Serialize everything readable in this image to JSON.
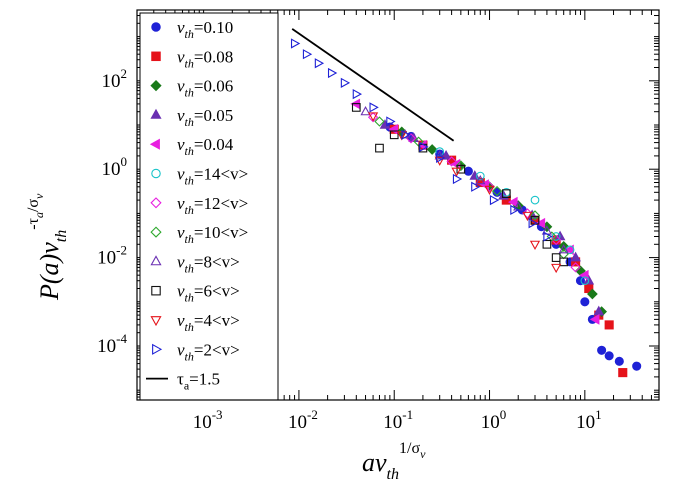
{
  "chart_data": {
    "type": "scatter",
    "title": "",
    "xscale": "log",
    "yscale": "log",
    "xlim": [
      0.0002,
      60
    ],
    "ylim": [
      6e-06,
      4000
    ],
    "grid": false,
    "legend_position": "top-left",
    "xlabel": {
      "base": "av",
      "sub": "th",
      "sup": "1/σ",
      "sup_sub": "v"
    },
    "ylabel": {
      "base": "P(a)v",
      "sub": "th",
      "sup": "-τ",
      "sup_sub": "a",
      "sup_rest": "/σ",
      "sup_rest_sub": "v"
    },
    "x_ticks": [
      {
        "value": 0.001,
        "base": "10",
        "exp": "-3"
      },
      {
        "value": 0.01,
        "base": "10",
        "exp": "-2"
      },
      {
        "value": 0.1,
        "base": "10",
        "exp": "-1"
      },
      {
        "value": 1,
        "base": "10",
        "exp": "0"
      },
      {
        "value": 10,
        "base": "10",
        "exp": "1"
      }
    ],
    "y_ticks": [
      {
        "value": 0.0001,
        "base": "10",
        "exp": "-4"
      },
      {
        "value": 0.01,
        "base": "10",
        "exp": "-2"
      },
      {
        "value": 1,
        "base": "10",
        "exp": "0"
      },
      {
        "value": 100,
        "base": "10",
        "exp": "2"
      }
    ],
    "series": [
      {
        "name": "v_th=0.10",
        "label": {
          "v": "v",
          "sub": "th",
          "rest": "=0.10"
        },
        "marker": "circle",
        "filled": true,
        "color": "#1f22d6",
        "points": [
          [
            0.09,
            9
          ],
          [
            0.15,
            5.5
          ],
          [
            0.3,
            2.2
          ],
          [
            0.6,
            0.9
          ],
          [
            1.2,
            0.3
          ],
          [
            2.2,
            0.12
          ],
          [
            3.5,
            0.05
          ],
          [
            5,
            0.02
          ],
          [
            7,
            0.008
          ],
          [
            9,
            0.003
          ],
          [
            10,
            0.001
          ],
          [
            12,
            0.0004
          ],
          [
            15,
            8e-05
          ],
          [
            18,
            6e-05
          ],
          [
            23,
            4.5e-05
          ],
          [
            35,
            3.5e-05
          ]
        ]
      },
      {
        "name": "v_th=0.08",
        "label": {
          "v": "v",
          "sub": "th",
          "rest": "=0.08"
        },
        "marker": "square",
        "filled": true,
        "color": "#e5131a",
        "points": [
          [
            0.1,
            8
          ],
          [
            0.2,
            3.5
          ],
          [
            0.4,
            1.6
          ],
          [
            0.8,
            0.5
          ],
          [
            1.5,
            0.2
          ],
          [
            3,
            0.07
          ],
          [
            5,
            0.025
          ],
          [
            8,
            0.008
          ],
          [
            11,
            0.002
          ],
          [
            14,
            0.0005
          ],
          [
            18,
            0.0003
          ],
          [
            25,
            2.5e-05
          ]
        ]
      },
      {
        "name": "v_th=0.06",
        "label": {
          "v": "v",
          "sub": "th",
          "rest": "=0.06"
        },
        "marker": "diamond",
        "filled": true,
        "color": "#1a7a1a",
        "points": [
          [
            0.12,
            7
          ],
          [
            0.25,
            2.8
          ],
          [
            0.5,
            1.2
          ],
          [
            1,
            0.4
          ],
          [
            2,
            0.15
          ],
          [
            4,
            0.05
          ],
          [
            6,
            0.018
          ],
          [
            9,
            0.005
          ],
          [
            12,
            0.0015
          ],
          [
            15,
            0.0006
          ]
        ]
      },
      {
        "name": "v_th=0.05",
        "label": {
          "v": "v",
          "sub": "th",
          "rest": "=0.05"
        },
        "marker": "triangle-up",
        "filled": true,
        "color": "#6a2fb2",
        "points": [
          [
            0.08,
            10
          ],
          [
            0.16,
            5
          ],
          [
            0.35,
            2
          ],
          [
            0.7,
            0.7
          ],
          [
            1.4,
            0.25
          ],
          [
            2.8,
            0.09
          ],
          [
            5.5,
            0.03
          ],
          [
            8,
            0.01
          ],
          [
            11,
            0.003
          ],
          [
            14,
            0.0006
          ]
        ]
      },
      {
        "name": "v_th=0.04",
        "label": {
          "v": "v",
          "sub": "th",
          "rest": "=0.04"
        },
        "marker": "triangle-left",
        "filled": true,
        "color": "#e81fe0",
        "points": [
          [
            0.04,
            30
          ],
          [
            0.1,
            8
          ],
          [
            0.2,
            3.5
          ],
          [
            0.45,
            1.3
          ],
          [
            0.9,
            0.45
          ],
          [
            1.8,
            0.18
          ],
          [
            3.5,
            0.06
          ],
          [
            7,
            0.015
          ],
          [
            10,
            0.004
          ],
          [
            13,
            0.0004
          ]
        ]
      },
      {
        "name": "v_th=14<v>",
        "label": {
          "v": "v",
          "sub": "th",
          "rest": "=14<v>"
        },
        "marker": "circle",
        "filled": false,
        "color": "#17c3c9",
        "points": [
          [
            0.3,
            2.5
          ],
          [
            0.8,
            0.7
          ],
          [
            1.5,
            0.3
          ],
          [
            3,
            0.2
          ],
          [
            5,
            0.03
          ],
          [
            7,
            0.015
          ],
          [
            10,
            0.003
          ]
        ]
      },
      {
        "name": "v_th=12<v>",
        "label": {
          "v": "v",
          "sub": "th",
          "rest": "=12<v>"
        },
        "marker": "diamond",
        "filled": false,
        "color": "#e81fe0",
        "points": [
          [
            0.06,
            15
          ],
          [
            0.15,
            5
          ],
          [
            0.4,
            1.5
          ],
          [
            1,
            0.4
          ],
          [
            2.5,
            0.1
          ],
          [
            5,
            0.025
          ],
          [
            8,
            0.006
          ]
        ]
      },
      {
        "name": "v_th=10<v>",
        "label": {
          "v": "v",
          "sub": "th",
          "rest": "=10<v>"
        },
        "marker": "diamond",
        "filled": false,
        "color": "#2ea82e",
        "points": [
          [
            0.07,
            12
          ],
          [
            0.18,
            4.2
          ],
          [
            0.5,
            1.2
          ],
          [
            1.2,
            0.32
          ],
          [
            3,
            0.09
          ],
          [
            4.5,
            0.03
          ],
          [
            6,
            0.012
          ]
        ]
      },
      {
        "name": "v_th=8<v>",
        "label": {
          "v": "v",
          "sub": "th",
          "rest": "=8<v>"
        },
        "marker": "triangle-up",
        "filled": false,
        "color": "#6a2fb2",
        "points": [
          [
            0.05,
            20
          ],
          [
            0.13,
            6
          ],
          [
            0.3,
            2
          ],
          [
            0.8,
            0.55
          ],
          [
            2,
            0.14
          ],
          [
            4,
            0.04
          ],
          [
            6,
            0.015
          ]
        ]
      },
      {
        "name": "v_th=6<v>",
        "label": {
          "v": "v",
          "sub": "th",
          "rest": "=6<v>"
        },
        "marker": "square",
        "filled": false,
        "color": "#111111",
        "points": [
          [
            0.04,
            25
          ],
          [
            0.07,
            3
          ],
          [
            0.1,
            6
          ],
          [
            0.2,
            3
          ],
          [
            0.5,
            1
          ],
          [
            1.5,
            0.28
          ],
          [
            3,
            0.07
          ],
          [
            4,
            0.02
          ],
          [
            5,
            0.01
          ],
          [
            6,
            0.008
          ]
        ]
      },
      {
        "name": "v_th=4<v>",
        "label": {
          "v": "v",
          "sub": "th",
          "rest": "=4<v>"
        },
        "marker": "triangle-down",
        "filled": false,
        "color": "#e5131a",
        "points": [
          [
            0.06,
            16
          ],
          [
            0.12,
            6
          ],
          [
            0.3,
            1.6
          ],
          [
            0.45,
            0.9
          ],
          [
            1,
            0.35
          ],
          [
            2.5,
            0.09
          ],
          [
            3,
            0.02
          ],
          [
            5,
            0.006
          ]
        ]
      },
      {
        "name": "v_th=2<v>",
        "label": {
          "v": "v",
          "sub": "th",
          "rest": "=2<v>"
        },
        "marker": "triangle-right",
        "filled": false,
        "color": "#1f22d6",
        "points": [
          [
            0.009,
            700
          ],
          [
            0.012,
            400
          ],
          [
            0.016,
            250
          ],
          [
            0.022,
            150
          ],
          [
            0.03,
            90
          ],
          [
            0.04,
            50
          ],
          [
            0.06,
            25
          ],
          [
            0.09,
            12
          ],
          [
            0.13,
            6
          ],
          [
            0.2,
            3.2
          ],
          [
            0.3,
            1.8
          ],
          [
            0.45,
            0.6
          ],
          [
            0.7,
            0.4
          ],
          [
            1.1,
            0.2
          ],
          [
            1.8,
            0.12
          ],
          [
            2.8,
            0.06
          ],
          [
            4,
            0.03
          ]
        ]
      }
    ],
    "reference_line": {
      "name": "τ_a=1.5",
      "label": {
        "tau": "τ",
        "sub": "a",
        "rest": "=1.5"
      },
      "color": "#000000",
      "x": [
        0.0085,
        0.42
      ],
      "y": [
        1500,
        4.4
      ]
    }
  }
}
